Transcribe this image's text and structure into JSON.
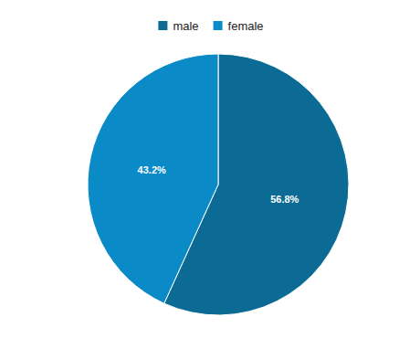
{
  "chart_data": {
    "type": "pie",
    "categories": [
      "male",
      "female"
    ],
    "values": [
      56.8,
      43.2
    ],
    "value_labels": [
      "56.8%",
      "43.2%"
    ],
    "colors": [
      "#0b6b95",
      "#0a8ac6"
    ],
    "legend": "top",
    "data_labels": true
  }
}
